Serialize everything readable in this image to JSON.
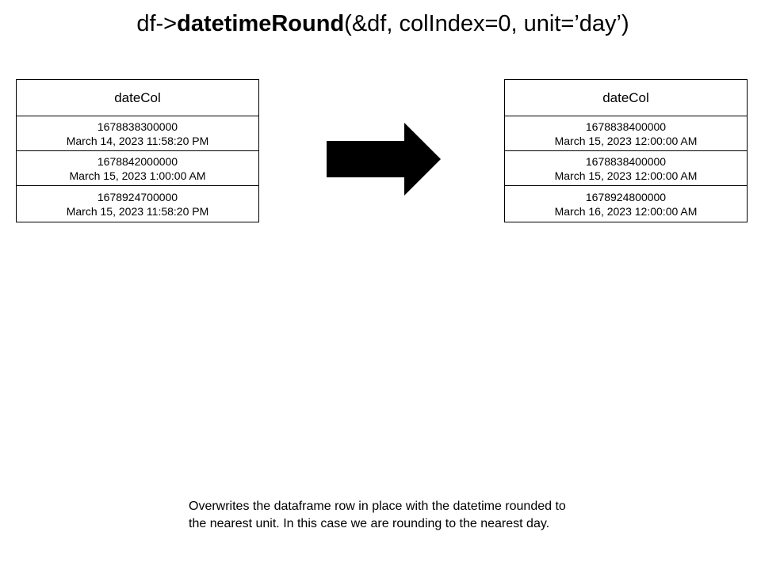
{
  "title": {
    "prefix": "df->",
    "method": "datetimeRound",
    "args": "(&df, colIndex=0, unit=’day’)"
  },
  "input_table": {
    "header": "dateCol",
    "rows": [
      {
        "timestamp": "1678838300000",
        "datetime": "March 14, 2023 11:58:20 PM"
      },
      {
        "timestamp": "1678842000000",
        "datetime": "March 15, 2023 1:00:00 AM"
      },
      {
        "timestamp": "1678924700000",
        "datetime": "March 15, 2023 11:58:20 PM"
      }
    ]
  },
  "output_table": {
    "header": "dateCol",
    "rows": [
      {
        "timestamp": "1678838400000",
        "datetime": "March 15, 2023 12:00:00 AM"
      },
      {
        "timestamp": "1678838400000",
        "datetime": "March 15, 2023 12:00:00 AM"
      },
      {
        "timestamp": "1678924800000",
        "datetime": "March 16, 2023 12:00:00 AM"
      }
    ]
  },
  "arrow": {
    "icon": "right-arrow-icon",
    "color": "#000000"
  },
  "caption": {
    "line1": "Overwrites the dataframe row in place with the datetime rounded to",
    "line2": "the nearest unit. In this case we are rounding to the nearest day."
  }
}
